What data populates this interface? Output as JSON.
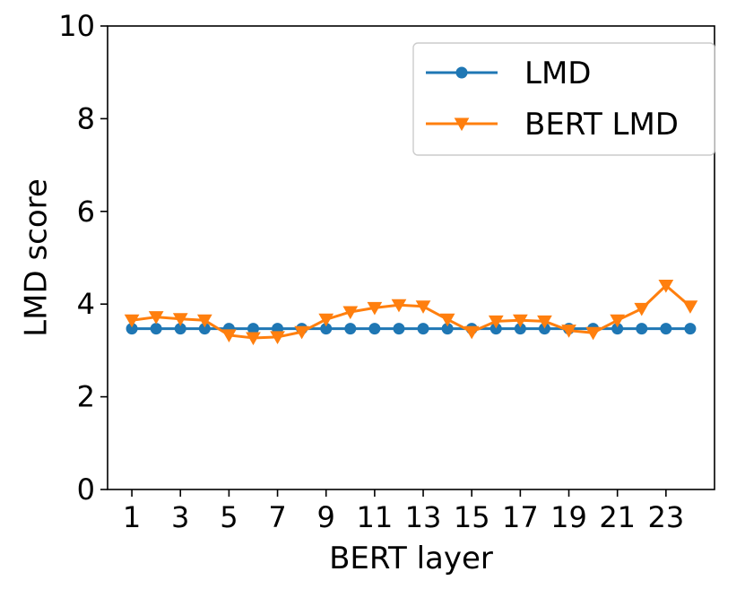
{
  "chart_data": {
    "type": "line",
    "title": "",
    "xlabel": "BERT layer",
    "ylabel": "LMD score",
    "xlim": [
      0,
      25
    ],
    "ylim": [
      0,
      10
    ],
    "x": [
      1,
      2,
      3,
      4,
      5,
      6,
      7,
      8,
      9,
      10,
      11,
      12,
      13,
      14,
      15,
      16,
      17,
      18,
      19,
      20,
      21,
      22,
      23,
      24
    ],
    "x_ticks": [
      1,
      3,
      5,
      7,
      9,
      11,
      13,
      15,
      17,
      19,
      21,
      23
    ],
    "x_tick_labels": [
      "1",
      "3",
      "5",
      "7",
      "9",
      "11",
      "13",
      "15",
      "17",
      "19",
      "21",
      "23"
    ],
    "y_ticks": [
      0,
      2,
      4,
      6,
      8,
      10
    ],
    "y_tick_labels": [
      "0",
      "2",
      "4",
      "6",
      "8",
      "10"
    ],
    "grid": false,
    "legend_position": "top-right",
    "series": [
      {
        "name": "LMD",
        "color": "#1f77b4",
        "marker": "circle",
        "values": [
          3.47,
          3.47,
          3.47,
          3.47,
          3.47,
          3.47,
          3.47,
          3.47,
          3.47,
          3.47,
          3.47,
          3.47,
          3.47,
          3.47,
          3.47,
          3.47,
          3.47,
          3.47,
          3.47,
          3.47,
          3.47,
          3.47,
          3.47,
          3.47
        ]
      },
      {
        "name": "BERT LMD",
        "color": "#ff7f0e",
        "marker": "triangle-down",
        "values": [
          3.65,
          3.72,
          3.68,
          3.65,
          3.33,
          3.27,
          3.29,
          3.4,
          3.67,
          3.83,
          3.92,
          3.98,
          3.95,
          3.67,
          3.4,
          3.63,
          3.65,
          3.63,
          3.43,
          3.38,
          3.65,
          3.9,
          4.4,
          3.95
        ]
      }
    ]
  }
}
